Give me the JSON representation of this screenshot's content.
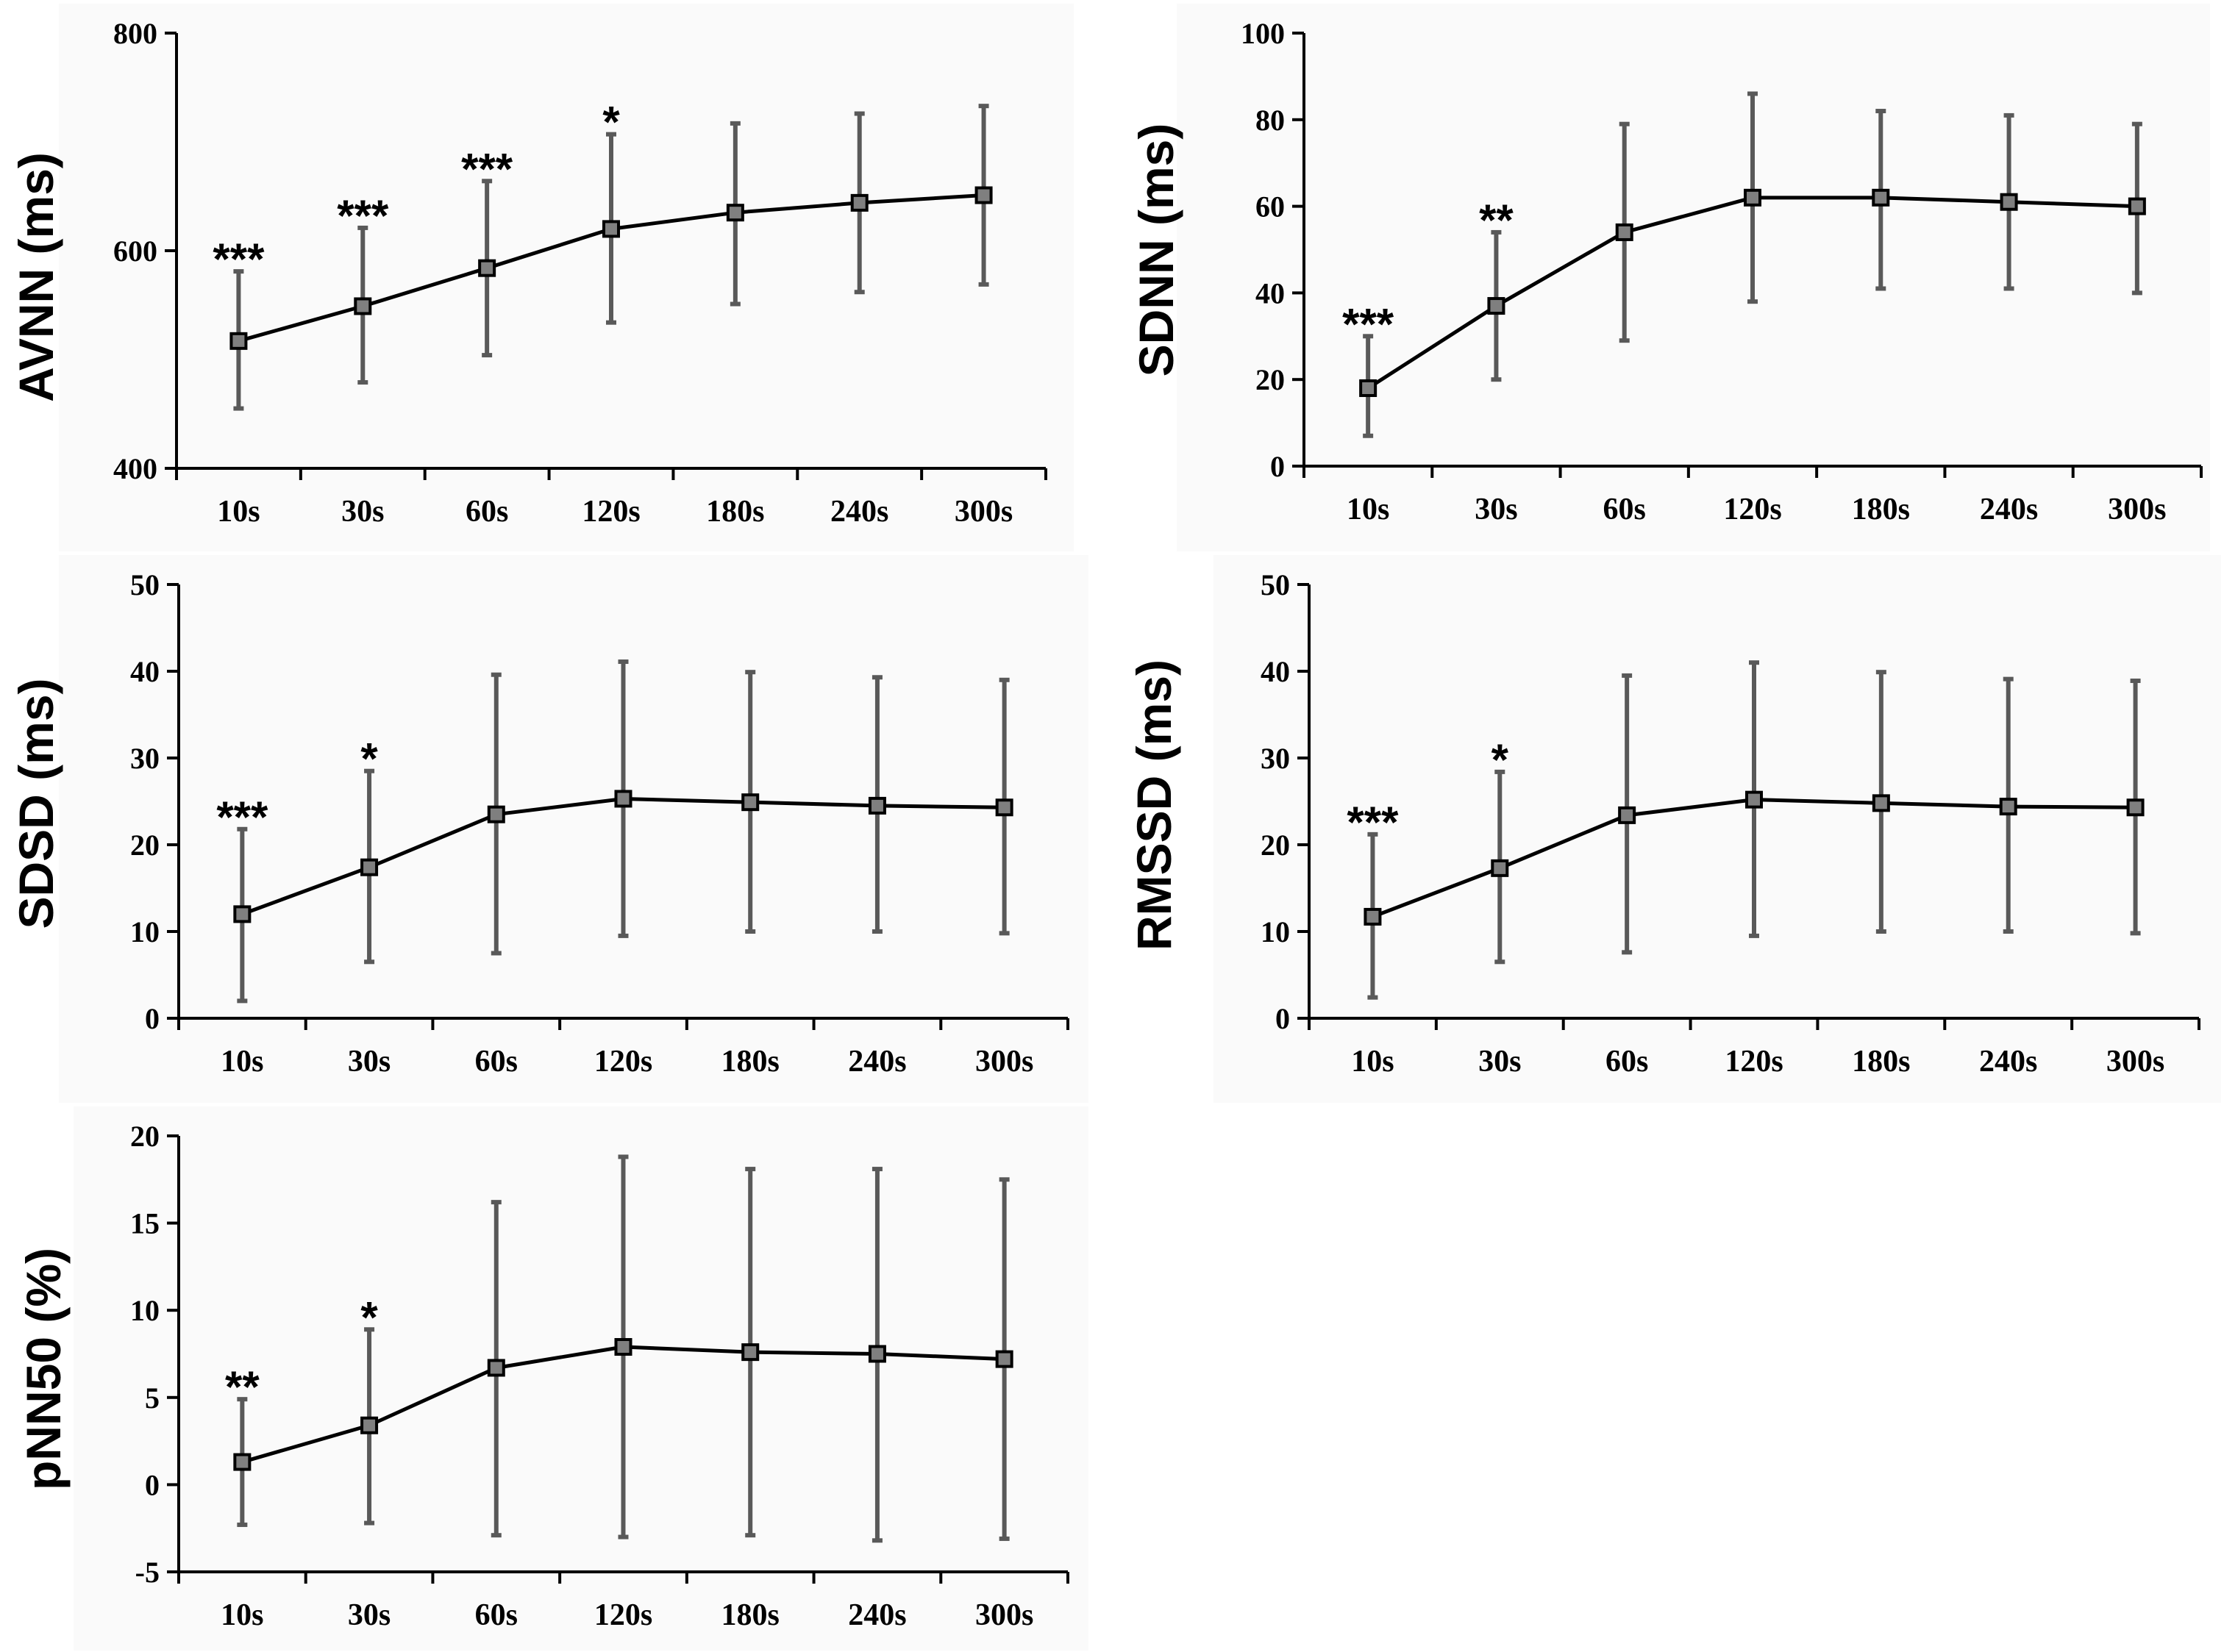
{
  "colors": {
    "line": "#000000",
    "marker_fill": "#7f7f7f",
    "marker_edge": "#000000",
    "error_bar": "#595959",
    "panel_bg": "#fafafa"
  },
  "chart_data": [
    {
      "type": "line",
      "ylabel": "AVNN (ms)",
      "categories": [
        "10s",
        "30s",
        "60s",
        "120s",
        "180s",
        "240s",
        "300s"
      ],
      "ylim": [
        400,
        800
      ],
      "yticks": [
        400,
        600,
        800
      ],
      "series": [
        {
          "values": [
            517,
            549,
            584,
            620,
            635,
            644,
            651
          ],
          "err_low": [
            455,
            479,
            504,
            534,
            551,
            562,
            569
          ],
          "err_high": [
            581,
            621,
            664,
            707,
            717,
            726,
            733
          ]
        }
      ],
      "significance": [
        "***",
        "***",
        "***",
        "*",
        "",
        "",
        ""
      ]
    },
    {
      "type": "line",
      "ylabel": "SDNN (ms)",
      "categories": [
        "10s",
        "30s",
        "60s",
        "120s",
        "180s",
        "240s",
        "300s"
      ],
      "ylim": [
        0,
        100
      ],
      "yticks": [
        0,
        20,
        40,
        60,
        80,
        100
      ],
      "series": [
        {
          "values": [
            18,
            37,
            54,
            62,
            62,
            61,
            60
          ],
          "err_low": [
            7,
            20,
            29,
            38,
            41,
            41,
            40
          ],
          "err_high": [
            30,
            54,
            79,
            86,
            82,
            81,
            79
          ]
        }
      ],
      "significance": [
        "***",
        "**",
        "",
        "",
        "",
        "",
        ""
      ]
    },
    {
      "type": "line",
      "ylabel": "SDSD (ms)",
      "categories": [
        "10s",
        "30s",
        "60s",
        "120s",
        "180s",
        "240s",
        "300s"
      ],
      "ylim": [
        0,
        50
      ],
      "yticks": [
        0,
        10,
        20,
        30,
        40,
        50
      ],
      "series": [
        {
          "values": [
            12,
            17.4,
            23.5,
            25.3,
            24.9,
            24.5,
            24.3
          ],
          "err_low": [
            2,
            6.5,
            7.5,
            9.5,
            10,
            10,
            9.8
          ],
          "err_high": [
            21.8,
            28.5,
            39.6,
            41.1,
            39.9,
            39.3,
            39
          ]
        }
      ],
      "significance": [
        "***",
        "*",
        "",
        "",
        "",
        "",
        ""
      ]
    },
    {
      "type": "line",
      "ylabel": "RMSSD (ms)",
      "categories": [
        "10s",
        "30s",
        "60s",
        "120s",
        "180s",
        "240s",
        "300s"
      ],
      "ylim": [
        0,
        50
      ],
      "yticks": [
        0,
        10,
        20,
        30,
        40,
        50
      ],
      "series": [
        {
          "values": [
            11.7,
            17.3,
            23.4,
            25.2,
            24.8,
            24.4,
            24.3
          ],
          "err_low": [
            2.4,
            6.5,
            7.6,
            9.5,
            10,
            10,
            9.8
          ],
          "err_high": [
            21.2,
            28.4,
            39.5,
            41,
            39.9,
            39.1,
            38.9
          ]
        }
      ],
      "significance": [
        "***",
        "*",
        "",
        "",
        "",
        "",
        ""
      ]
    },
    {
      "type": "line",
      "ylabel": "pNN50 (%)",
      "categories": [
        "10s",
        "30s",
        "60s",
        "120s",
        "180s",
        "240s",
        "300s"
      ],
      "ylim": [
        -5,
        20
      ],
      "yticks": [
        -5,
        0,
        5,
        10,
        15,
        20
      ],
      "series": [
        {
          "values": [
            1.3,
            3.4,
            6.7,
            7.9,
            7.6,
            7.5,
            7.2
          ],
          "err_low": [
            -2.3,
            -2.2,
            -2.9,
            -3,
            -2.9,
            -3.2,
            -3.1
          ],
          "err_high": [
            4.9,
            8.9,
            16.2,
            18.8,
            18.1,
            18.1,
            17.5
          ]
        }
      ],
      "significance": [
        "**",
        "*",
        "",
        "",
        "",
        "",
        ""
      ]
    }
  ]
}
